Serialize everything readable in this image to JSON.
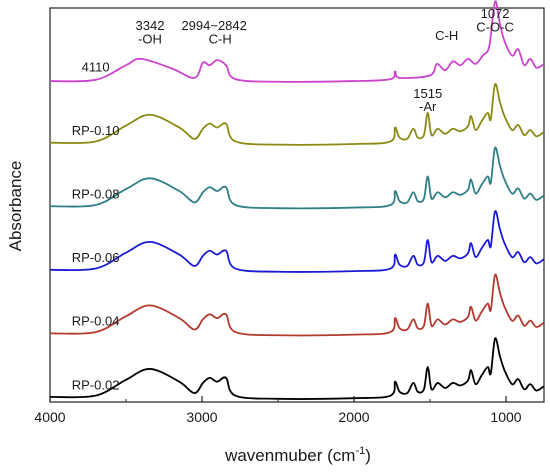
{
  "chart_data": {
    "type": "line",
    "xlabel": "wavenmuber (cm",
    "xlabel_sup": "-1",
    "xlabel_tail": ")",
    "ylabel": "Absorbance",
    "xlim": [
      4000,
      750
    ],
    "x_reversed": true,
    "xticks": [
      4000,
      3000,
      2000,
      1000
    ],
    "xtick_labels": [
      "4000",
      "3000",
      "2000",
      "1000"
    ],
    "ylim": [
      0,
      6.2
    ],
    "yticks_shown": false,
    "grid": false,
    "legend": "none",
    "series_labels_inline": true,
    "series": [
      {
        "name": "RP-0.02",
        "offset": 0.0,
        "color": "#000000",
        "points": [
          [
            4000,
            0.08
          ],
          [
            3700,
            0.1
          ],
          [
            3500,
            0.35
          ],
          [
            3342,
            0.52
          ],
          [
            3150,
            0.32
          ],
          [
            3050,
            0.14
          ],
          [
            2994,
            0.3
          ],
          [
            2950,
            0.38
          ],
          [
            2900,
            0.32
          ],
          [
            2842,
            0.38
          ],
          [
            2780,
            0.1
          ],
          [
            2500,
            0.05
          ],
          [
            2000,
            0.06
          ],
          [
            1760,
            0.1
          ],
          [
            1730,
            0.32
          ],
          [
            1700,
            0.16
          ],
          [
            1650,
            0.14
          ],
          [
            1610,
            0.3
          ],
          [
            1580,
            0.16
          ],
          [
            1540,
            0.2
          ],
          [
            1515,
            0.55
          ],
          [
            1490,
            0.2
          ],
          [
            1450,
            0.3
          ],
          [
            1400,
            0.22
          ],
          [
            1350,
            0.3
          ],
          [
            1300,
            0.26
          ],
          [
            1250,
            0.34
          ],
          [
            1230,
            0.5
          ],
          [
            1200,
            0.28
          ],
          [
            1160,
            0.42
          ],
          [
            1120,
            0.55
          ],
          [
            1100,
            0.45
          ],
          [
            1072,
            1.0
          ],
          [
            1040,
            0.72
          ],
          [
            1010,
            0.5
          ],
          [
            960,
            0.28
          ],
          [
            920,
            0.36
          ],
          [
            880,
            0.2
          ],
          [
            840,
            0.28
          ],
          [
            800,
            0.18
          ],
          [
            750,
            0.25
          ]
        ]
      },
      {
        "name": "RP-0.04",
        "offset": 1.0,
        "color": "#b23a2e",
        "points": [
          [
            4000,
            0.08
          ],
          [
            3700,
            0.1
          ],
          [
            3500,
            0.35
          ],
          [
            3342,
            0.52
          ],
          [
            3150,
            0.32
          ],
          [
            3050,
            0.14
          ],
          [
            2994,
            0.3
          ],
          [
            2950,
            0.38
          ],
          [
            2900,
            0.32
          ],
          [
            2842,
            0.38
          ],
          [
            2780,
            0.1
          ],
          [
            2500,
            0.05
          ],
          [
            2000,
            0.06
          ],
          [
            1760,
            0.1
          ],
          [
            1730,
            0.32
          ],
          [
            1700,
            0.16
          ],
          [
            1650,
            0.14
          ],
          [
            1610,
            0.3
          ],
          [
            1580,
            0.16
          ],
          [
            1540,
            0.2
          ],
          [
            1515,
            0.55
          ],
          [
            1490,
            0.2
          ],
          [
            1450,
            0.3
          ],
          [
            1400,
            0.22
          ],
          [
            1350,
            0.3
          ],
          [
            1300,
            0.26
          ],
          [
            1250,
            0.34
          ],
          [
            1230,
            0.5
          ],
          [
            1200,
            0.28
          ],
          [
            1160,
            0.42
          ],
          [
            1120,
            0.55
          ],
          [
            1100,
            0.45
          ],
          [
            1072,
            1.0
          ],
          [
            1040,
            0.72
          ],
          [
            1010,
            0.5
          ],
          [
            960,
            0.28
          ],
          [
            920,
            0.36
          ],
          [
            880,
            0.2
          ],
          [
            840,
            0.28
          ],
          [
            800,
            0.18
          ],
          [
            750,
            0.25
          ]
        ]
      },
      {
        "name": "RP-0.06",
        "offset": 2.0,
        "color": "#1a1ad6",
        "points": [
          [
            4000,
            0.08
          ],
          [
            3700,
            0.1
          ],
          [
            3500,
            0.35
          ],
          [
            3342,
            0.52
          ],
          [
            3150,
            0.32
          ],
          [
            3050,
            0.14
          ],
          [
            2994,
            0.3
          ],
          [
            2950,
            0.38
          ],
          [
            2900,
            0.32
          ],
          [
            2842,
            0.38
          ],
          [
            2780,
            0.1
          ],
          [
            2500,
            0.05
          ],
          [
            2000,
            0.06
          ],
          [
            1760,
            0.1
          ],
          [
            1730,
            0.32
          ],
          [
            1700,
            0.16
          ],
          [
            1650,
            0.14
          ],
          [
            1610,
            0.3
          ],
          [
            1580,
            0.16
          ],
          [
            1540,
            0.2
          ],
          [
            1515,
            0.55
          ],
          [
            1490,
            0.2
          ],
          [
            1450,
            0.3
          ],
          [
            1400,
            0.22
          ],
          [
            1350,
            0.3
          ],
          [
            1300,
            0.26
          ],
          [
            1250,
            0.34
          ],
          [
            1230,
            0.5
          ],
          [
            1200,
            0.28
          ],
          [
            1160,
            0.42
          ],
          [
            1120,
            0.55
          ],
          [
            1100,
            0.45
          ],
          [
            1072,
            1.0
          ],
          [
            1040,
            0.72
          ],
          [
            1010,
            0.5
          ],
          [
            960,
            0.28
          ],
          [
            920,
            0.36
          ],
          [
            880,
            0.2
          ],
          [
            840,
            0.28
          ],
          [
            800,
            0.18
          ],
          [
            750,
            0.25
          ]
        ]
      },
      {
        "name": "RP-0.08",
        "offset": 3.0,
        "color": "#2e7f86",
        "points": [
          [
            4000,
            0.08
          ],
          [
            3700,
            0.1
          ],
          [
            3500,
            0.35
          ],
          [
            3342,
            0.52
          ],
          [
            3150,
            0.32
          ],
          [
            3050,
            0.14
          ],
          [
            2994,
            0.3
          ],
          [
            2950,
            0.38
          ],
          [
            2900,
            0.32
          ],
          [
            2842,
            0.38
          ],
          [
            2780,
            0.1
          ],
          [
            2500,
            0.05
          ],
          [
            2000,
            0.06
          ],
          [
            1760,
            0.1
          ],
          [
            1730,
            0.32
          ],
          [
            1700,
            0.16
          ],
          [
            1650,
            0.14
          ],
          [
            1610,
            0.3
          ],
          [
            1580,
            0.16
          ],
          [
            1540,
            0.2
          ],
          [
            1515,
            0.55
          ],
          [
            1490,
            0.2
          ],
          [
            1450,
            0.3
          ],
          [
            1400,
            0.22
          ],
          [
            1350,
            0.3
          ],
          [
            1300,
            0.26
          ],
          [
            1250,
            0.34
          ],
          [
            1230,
            0.5
          ],
          [
            1200,
            0.28
          ],
          [
            1160,
            0.42
          ],
          [
            1120,
            0.55
          ],
          [
            1100,
            0.45
          ],
          [
            1072,
            1.0
          ],
          [
            1040,
            0.72
          ],
          [
            1010,
            0.5
          ],
          [
            960,
            0.28
          ],
          [
            920,
            0.36
          ],
          [
            880,
            0.2
          ],
          [
            840,
            0.28
          ],
          [
            800,
            0.18
          ],
          [
            750,
            0.25
          ]
        ]
      },
      {
        "name": "RP-0.10",
        "offset": 4.0,
        "color": "#8a8a14",
        "points": [
          [
            4000,
            0.08
          ],
          [
            3700,
            0.1
          ],
          [
            3500,
            0.35
          ],
          [
            3342,
            0.52
          ],
          [
            3150,
            0.32
          ],
          [
            3050,
            0.14
          ],
          [
            2994,
            0.3
          ],
          [
            2950,
            0.38
          ],
          [
            2900,
            0.32
          ],
          [
            2842,
            0.38
          ],
          [
            2780,
            0.1
          ],
          [
            2500,
            0.05
          ],
          [
            2000,
            0.06
          ],
          [
            1760,
            0.1
          ],
          [
            1730,
            0.32
          ],
          [
            1700,
            0.16
          ],
          [
            1650,
            0.14
          ],
          [
            1610,
            0.3
          ],
          [
            1580,
            0.16
          ],
          [
            1540,
            0.2
          ],
          [
            1515,
            0.55
          ],
          [
            1490,
            0.2
          ],
          [
            1450,
            0.3
          ],
          [
            1400,
            0.22
          ],
          [
            1350,
            0.3
          ],
          [
            1300,
            0.26
          ],
          [
            1250,
            0.34
          ],
          [
            1230,
            0.5
          ],
          [
            1200,
            0.28
          ],
          [
            1160,
            0.42
          ],
          [
            1120,
            0.55
          ],
          [
            1100,
            0.45
          ],
          [
            1072,
            1.0
          ],
          [
            1040,
            0.72
          ],
          [
            1010,
            0.5
          ],
          [
            960,
            0.28
          ],
          [
            920,
            0.36
          ],
          [
            880,
            0.2
          ],
          [
            840,
            0.28
          ],
          [
            800,
            0.18
          ],
          [
            750,
            0.25
          ]
        ]
      },
      {
        "name": "4110",
        "offset": 5.0,
        "color": "#cc44cc",
        "points": [
          [
            4000,
            0.05
          ],
          [
            3700,
            0.07
          ],
          [
            3500,
            0.3
          ],
          [
            3400,
            0.4
          ],
          [
            3200,
            0.25
          ],
          [
            3050,
            0.1
          ],
          [
            2994,
            0.34
          ],
          [
            2950,
            0.3
          ],
          [
            2900,
            0.38
          ],
          [
            2842,
            0.3
          ],
          [
            2780,
            0.08
          ],
          [
            2500,
            0.04
          ],
          [
            2000,
            0.05
          ],
          [
            1760,
            0.08
          ],
          [
            1730,
            0.2
          ],
          [
            1700,
            0.1
          ],
          [
            1500,
            0.14
          ],
          [
            1455,
            0.32
          ],
          [
            1400,
            0.22
          ],
          [
            1350,
            0.36
          ],
          [
            1300,
            0.3
          ],
          [
            1250,
            0.4
          ],
          [
            1200,
            0.32
          ],
          [
            1150,
            0.46
          ],
          [
            1110,
            0.6
          ],
          [
            1072,
            1.3
          ],
          [
            1040,
            0.95
          ],
          [
            1010,
            0.68
          ],
          [
            960,
            0.45
          ],
          [
            920,
            0.55
          ],
          [
            880,
            0.3
          ],
          [
            840,
            0.4
          ],
          [
            800,
            0.26
          ],
          [
            750,
            0.32
          ]
        ]
      }
    ],
    "annotations": [
      {
        "text": "3342",
        "x": 3342,
        "y": 5.85
      },
      {
        "text": "-OH",
        "x": 3342,
        "y": 5.64
      },
      {
        "text": "2994~2842",
        "x": 2920,
        "y": 5.85
      },
      {
        "text": "C-H",
        "x": 2880,
        "y": 5.64
      },
      {
        "text": "1072",
        "x": 1072,
        "y": 6.04
      },
      {
        "text": "C-O-C",
        "x": 1072,
        "y": 5.83
      },
      {
        "text": "C-H",
        "x": 1390,
        "y": 5.7
      },
      {
        "text": "1515",
        "x": 1515,
        "y": 4.78
      },
      {
        "text": "-Ar",
        "x": 1515,
        "y": 4.58
      }
    ]
  }
}
